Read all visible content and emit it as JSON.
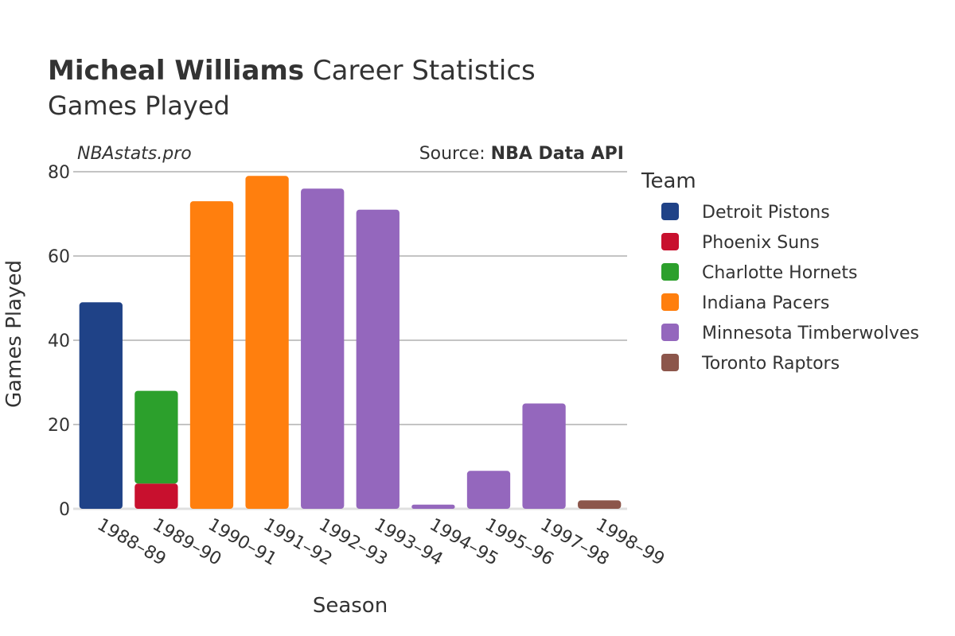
{
  "header": {
    "player_name": "Micheal Williams",
    "title_rest": "Career Statistics",
    "subtitle": "Games Played"
  },
  "watermark": "NBAstats.pro",
  "source": {
    "prefix": "Source: ",
    "name": "NBA Data API"
  },
  "legend": {
    "title": "Team",
    "items": [
      {
        "label": "Detroit Pistons",
        "color": "#1f4287"
      },
      {
        "label": "Phoenix Suns",
        "color": "#c8102e"
      },
      {
        "label": "Charlotte Hornets",
        "color": "#2ca02c"
      },
      {
        "label": "Indiana Pacers",
        "color": "#ff7f0e"
      },
      {
        "label": "Minnesota Timberwolves",
        "color": "#9467bd"
      },
      {
        "label": "Toronto Raptors",
        "color": "#8c564b"
      }
    ]
  },
  "chart_data": {
    "type": "bar",
    "stacked": true,
    "title": "Micheal Williams Career Statistics",
    "subtitle": "Games Played",
    "xlabel": "Season",
    "ylabel": "Games Played",
    "ylim": [
      0,
      80
    ],
    "yticks": [
      0,
      20,
      40,
      60,
      80
    ],
    "grid": true,
    "legend_position": "right",
    "categories": [
      "1988–89",
      "1989–90",
      "1990–91",
      "1991–92",
      "1992–93",
      "1993–94",
      "1994–95",
      "1995–96",
      "1997–98",
      "1998–99"
    ],
    "series": [
      {
        "name": "Detroit Pistons",
        "color": "#1f4287",
        "values": [
          49,
          0,
          0,
          0,
          0,
          0,
          0,
          0,
          0,
          0
        ]
      },
      {
        "name": "Phoenix Suns",
        "color": "#c8102e",
        "values": [
          0,
          6,
          0,
          0,
          0,
          0,
          0,
          0,
          0,
          0
        ]
      },
      {
        "name": "Charlotte Hornets",
        "color": "#2ca02c",
        "values": [
          0,
          22,
          0,
          0,
          0,
          0,
          0,
          0,
          0,
          0
        ]
      },
      {
        "name": "Indiana Pacers",
        "color": "#ff7f0e",
        "values": [
          0,
          0,
          73,
          79,
          0,
          0,
          0,
          0,
          0,
          0
        ]
      },
      {
        "name": "Minnesota Timberwolves",
        "color": "#9467bd",
        "values": [
          0,
          0,
          0,
          0,
          76,
          71,
          1,
          9,
          25,
          0
        ]
      },
      {
        "name": "Toronto Raptors",
        "color": "#8c564b",
        "values": [
          0,
          0,
          0,
          0,
          0,
          0,
          0,
          0,
          0,
          2
        ]
      }
    ]
  }
}
